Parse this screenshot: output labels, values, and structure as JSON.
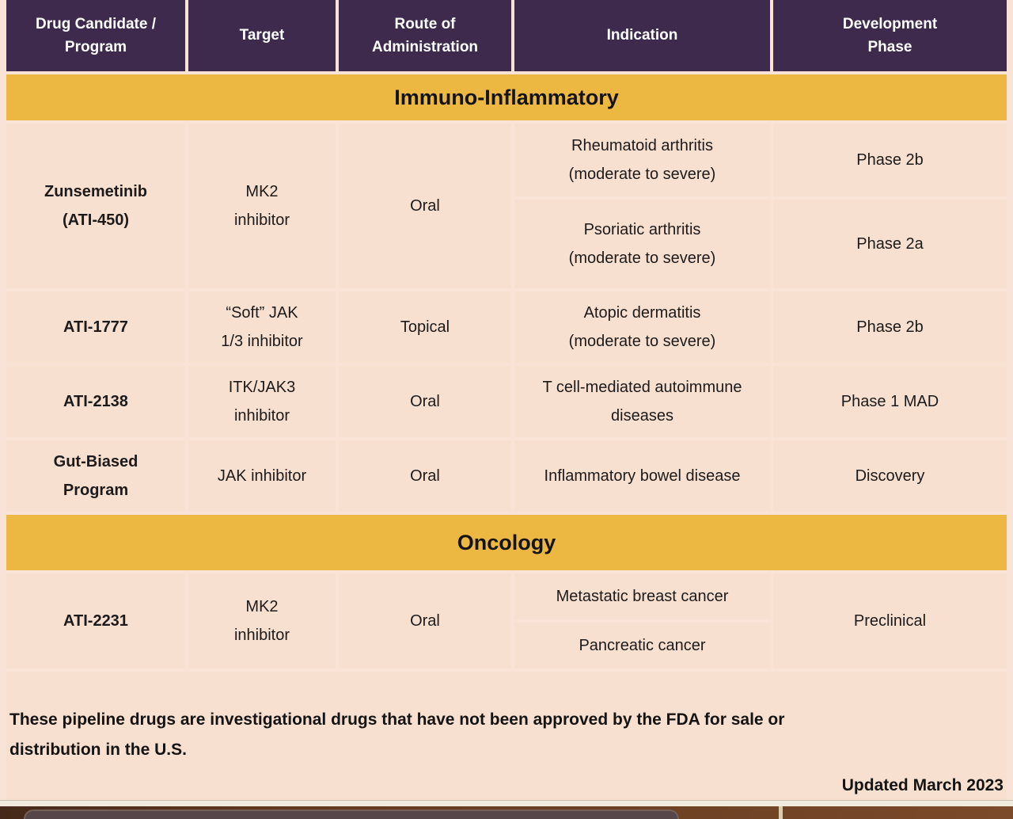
{
  "colors": {
    "header_bg": "#3E2A4D",
    "section_band_bg": "#EDB842",
    "row_bg": "#F8E0D0",
    "header_text": "#FFFFFF",
    "body_text": "#1C1A1A",
    "bottom_bar": "#6E4124"
  },
  "table": {
    "columns": [
      "Drug Candidate /\nProgram",
      "Target",
      "Route of\nAdministration",
      "Indication",
      "Development\nPhase"
    ],
    "sections": [
      {
        "title": "Immuno-Inflammatory",
        "rows": [
          {
            "drug": "Zunsemetinib\n(ATI-450)",
            "target": "MK2\ninhibitor",
            "route": "Oral",
            "indications": [
              {
                "text": "Rheumatoid arthritis\n(moderate to severe)",
                "phase": "Phase 2b"
              },
              {
                "text": "Psoriatic arthritis\n(moderate to severe)",
                "phase": "Phase 2a"
              }
            ]
          },
          {
            "drug": "ATI-1777",
            "target": "“Soft” JAK\n1/3 inhibitor",
            "route": "Topical",
            "indications": [
              {
                "text": "Atopic dermatitis\n(moderate to severe)",
                "phase": "Phase 2b"
              }
            ]
          },
          {
            "drug": "ATI-2138",
            "target": "ITK/JAK3\ninhibitor",
            "route": "Oral",
            "indications": [
              {
                "text": "T cell-mediated autoimmune\ndiseases",
                "phase": "Phase 1 MAD"
              }
            ]
          },
          {
            "drug": "Gut-Biased\nProgram",
            "target": "JAK inhibitor",
            "route": "Oral",
            "indications": [
              {
                "text": "Inflammatory bowel disease",
                "phase": "Discovery"
              }
            ]
          }
        ]
      },
      {
        "title": "Oncology",
        "rows": [
          {
            "drug": "ATI-2231",
            "target": "MK2\ninhibitor",
            "route": "Oral",
            "indications": [
              {
                "text": "Metastatic breast cancer"
              },
              {
                "text": "Pancreatic cancer"
              }
            ],
            "shared_phase": "Preclinical"
          }
        ]
      }
    ]
  },
  "footer": {
    "disclaimer": "These pipeline drugs are investigational drugs that have not been approved by the FDA for sale or\ndistribution in the U.S.",
    "updated": "Updated March 2023"
  }
}
